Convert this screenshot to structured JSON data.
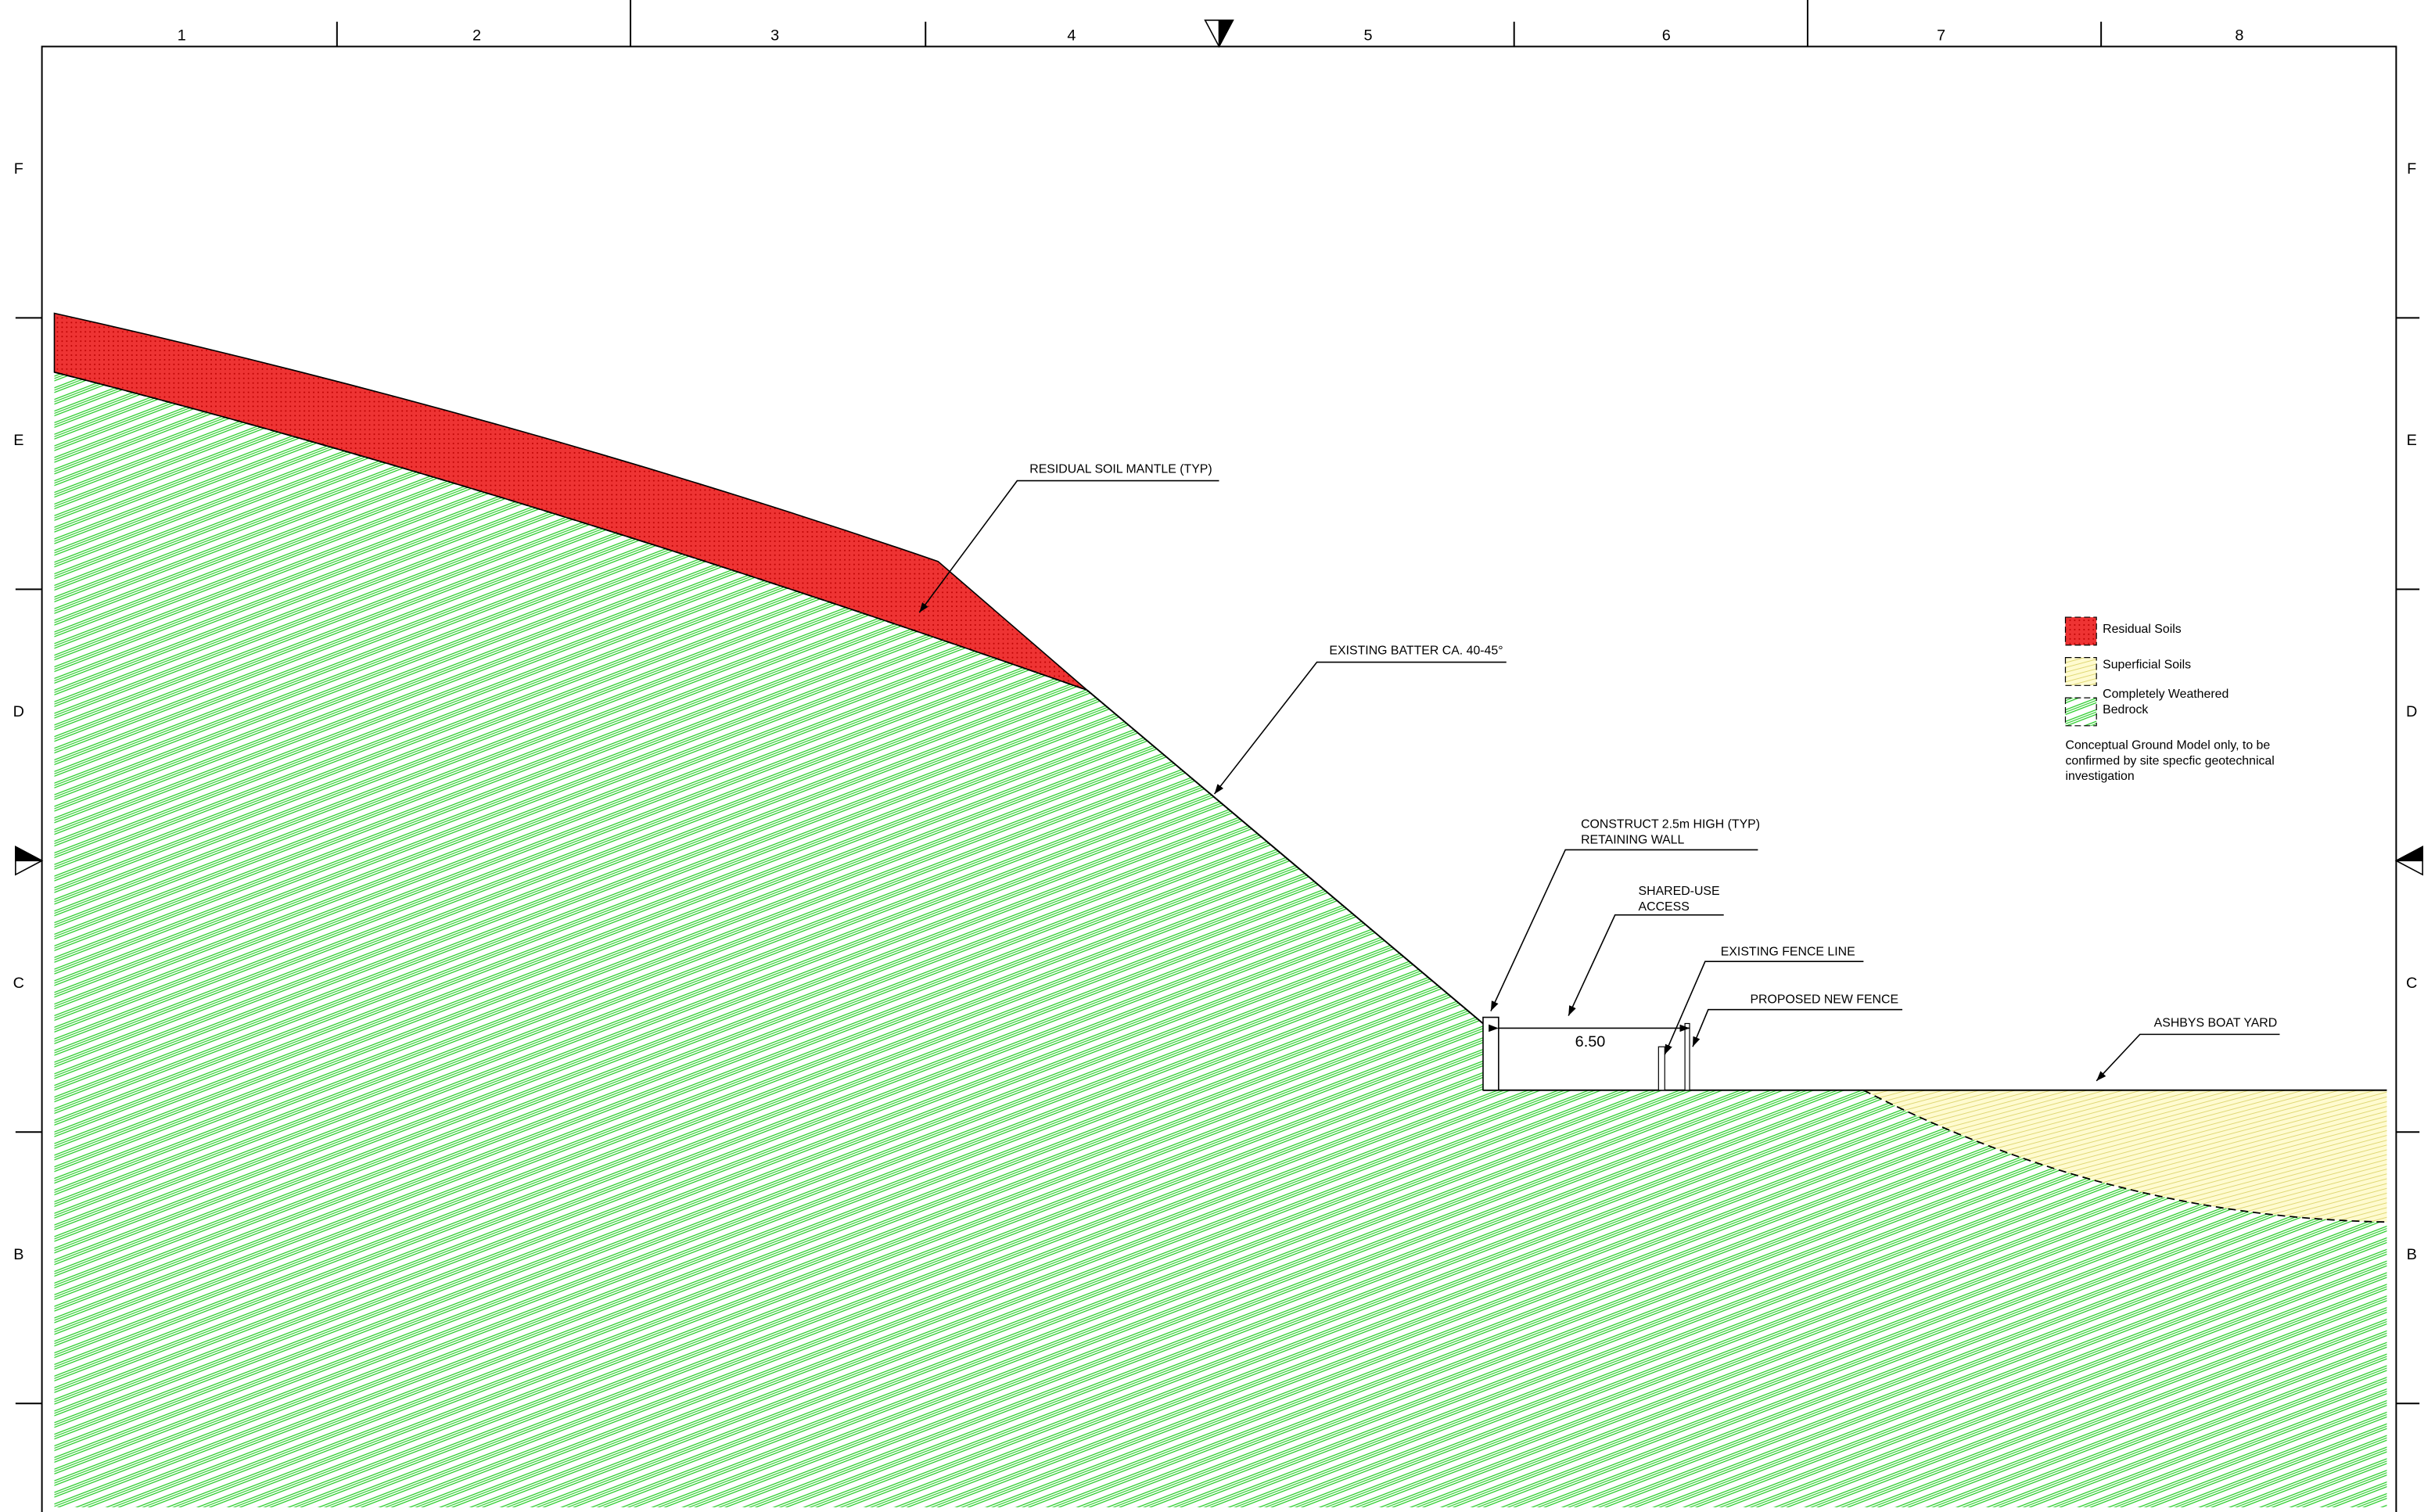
{
  "grid": {
    "columns": [
      "1",
      "2",
      "3",
      "4",
      "5",
      "6",
      "7",
      "8"
    ],
    "rows": [
      "F",
      "E",
      "D",
      "C",
      "B"
    ]
  },
  "annotations": {
    "residual_soil": [
      "RESIDUAL SOIL MANTLE (TYP)"
    ],
    "existing_batter": [
      "EXISTING BATTER CA. 40-45°"
    ],
    "retaining_wall": [
      "CONSTRUCT 2.5m HIGH (TYP)",
      "RETAINING WALL"
    ],
    "shared_use": [
      "SHARED-USE",
      "ACCESS"
    ],
    "existing_fence": [
      "EXISTING FENCE LINE"
    ],
    "proposed_fence": [
      "PROPOSED NEW FENCE"
    ],
    "boat_yard": [
      "ASHBYS BOAT YARD"
    ]
  },
  "dimension": "6.50",
  "legend": {
    "items": [
      [
        "Residual Soils"
      ],
      [
        "Superficial Soils"
      ],
      [
        "Completely Weathered",
        "Bedrock"
      ]
    ],
    "note": [
      "Conceptual Ground Model only, to be",
      "confirmed by site specfic geotechnical",
      "investigation"
    ]
  }
}
